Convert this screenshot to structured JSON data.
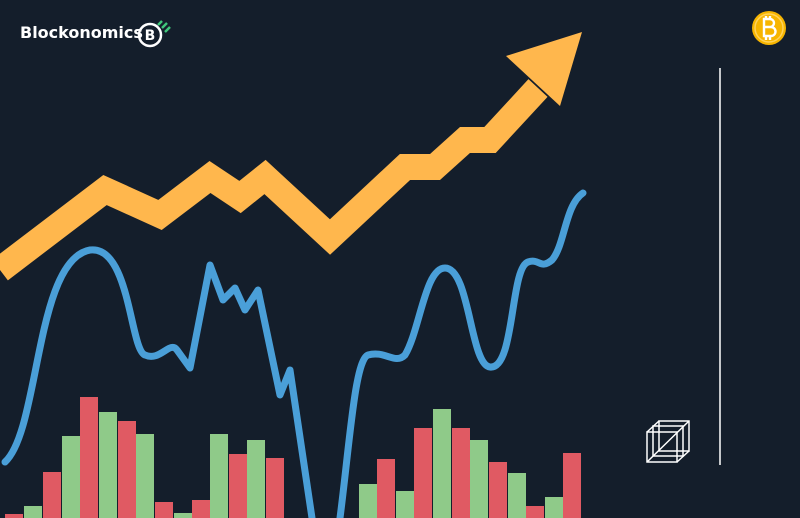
{
  "header": {
    "brand": "Blockonomics",
    "logo_letter": "B"
  }
}
